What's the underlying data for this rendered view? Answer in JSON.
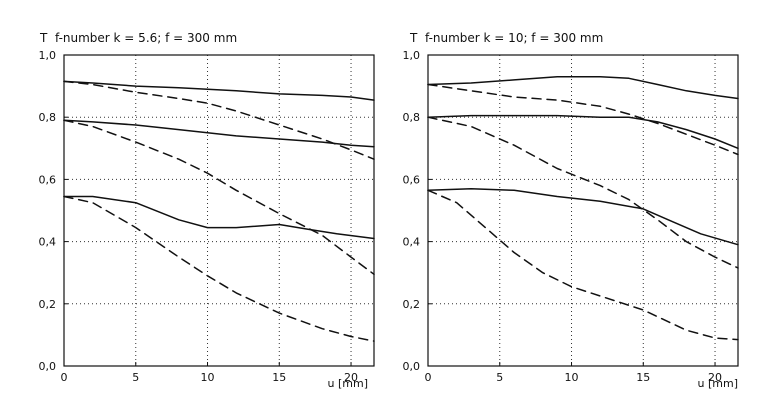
{
  "chart_data": [
    {
      "type": "line",
      "title": "f-number k = 5.6; f = 300 mm",
      "ylabel": "T",
      "xlabel": "u [mm]",
      "xlim": [
        0,
        21.6
      ],
      "ylim": [
        0,
        1.0
      ],
      "x_ticks": [
        0,
        5,
        10,
        15,
        20
      ],
      "x_tick_labels": [
        "0",
        "5",
        "10",
        "15",
        "20"
      ],
      "y_ticks": [
        0,
        0.2,
        0.4,
        0.6,
        0.8,
        1.0
      ],
      "y_tick_labels": [
        "0,0",
        "0,2",
        "0,4",
        "0,6",
        "0,8",
        "1,0"
      ],
      "grid": true,
      "series": [
        {
          "style": "solid",
          "x": [
            0,
            2,
            5,
            8,
            10,
            12,
            15,
            18,
            20,
            21.6
          ],
          "y": [
            0.915,
            0.91,
            0.9,
            0.895,
            0.89,
            0.885,
            0.875,
            0.87,
            0.865,
            0.855
          ]
        },
        {
          "style": "dashed",
          "x": [
            0,
            2,
            5,
            8,
            10,
            12,
            15,
            18,
            20,
            21.6
          ],
          "y": [
            0.915,
            0.905,
            0.88,
            0.86,
            0.845,
            0.82,
            0.775,
            0.73,
            0.695,
            0.665
          ]
        },
        {
          "style": "solid",
          "x": [
            0,
            2,
            5,
            8,
            10,
            12,
            15,
            18,
            20,
            21.6
          ],
          "y": [
            0.79,
            0.785,
            0.775,
            0.76,
            0.75,
            0.74,
            0.73,
            0.72,
            0.71,
            0.705
          ]
        },
        {
          "style": "dashed",
          "x": [
            0,
            2,
            5,
            8,
            10,
            12,
            15,
            18,
            20,
            21.6
          ],
          "y": [
            0.79,
            0.77,
            0.72,
            0.665,
            0.62,
            0.565,
            0.49,
            0.42,
            0.35,
            0.295
          ]
        },
        {
          "style": "solid",
          "x": [
            0,
            2,
            5,
            8,
            10,
            12,
            15,
            17,
            19,
            21.6
          ],
          "y": [
            0.545,
            0.545,
            0.525,
            0.47,
            0.445,
            0.445,
            0.455,
            0.44,
            0.425,
            0.41
          ]
        },
        {
          "style": "dashed",
          "x": [
            0,
            2,
            5,
            8,
            10,
            12,
            15,
            18,
            20,
            21.6
          ],
          "y": [
            0.545,
            0.525,
            0.445,
            0.35,
            0.29,
            0.235,
            0.17,
            0.12,
            0.095,
            0.08
          ]
        }
      ]
    },
    {
      "type": "line",
      "title": "f-number k = 10; f = 300 mm",
      "ylabel": "T",
      "xlabel": "u [mm]",
      "xlim": [
        0,
        21.6
      ],
      "ylim": [
        0,
        1.0
      ],
      "x_ticks": [
        0,
        5,
        10,
        15,
        20
      ],
      "x_tick_labels": [
        "0",
        "5",
        "10",
        "15",
        "20"
      ],
      "y_ticks": [
        0,
        0.2,
        0.4,
        0.6,
        0.8,
        1.0
      ],
      "y_tick_labels": [
        "0,0",
        "0,2",
        "0,4",
        "0,6",
        "0,8",
        "1,0"
      ],
      "grid": true,
      "series": [
        {
          "style": "solid",
          "x": [
            0,
            3,
            6,
            9,
            12,
            14,
            16,
            18,
            20,
            21.6
          ],
          "y": [
            0.905,
            0.91,
            0.92,
            0.93,
            0.93,
            0.925,
            0.905,
            0.885,
            0.87,
            0.86
          ]
        },
        {
          "style": "dashed",
          "x": [
            0,
            3,
            6,
            9,
            12,
            14,
            16,
            18,
            20,
            21.6
          ],
          "y": [
            0.905,
            0.885,
            0.865,
            0.855,
            0.835,
            0.81,
            0.78,
            0.745,
            0.71,
            0.68
          ]
        },
        {
          "style": "solid",
          "x": [
            0,
            3,
            6,
            9,
            12,
            14,
            16,
            18,
            20,
            21.6
          ],
          "y": [
            0.8,
            0.805,
            0.805,
            0.805,
            0.8,
            0.8,
            0.785,
            0.76,
            0.73,
            0.7
          ]
        },
        {
          "style": "dashed",
          "x": [
            0,
            3,
            6,
            9,
            12,
            14,
            16,
            18,
            20,
            21.6
          ],
          "y": [
            0.8,
            0.77,
            0.71,
            0.635,
            0.58,
            0.535,
            0.47,
            0.4,
            0.35,
            0.315
          ]
        },
        {
          "style": "solid",
          "x": [
            0,
            3,
            6,
            9,
            12,
            15,
            17,
            19,
            21.6
          ],
          "y": [
            0.565,
            0.57,
            0.565,
            0.545,
            0.53,
            0.505,
            0.465,
            0.425,
            0.39
          ]
        },
        {
          "style": "dashed",
          "x": [
            0,
            2,
            4,
            6,
            8,
            10,
            12,
            15,
            18,
            20,
            21.6
          ],
          "y": [
            0.565,
            0.525,
            0.445,
            0.365,
            0.3,
            0.255,
            0.225,
            0.18,
            0.115,
            0.09,
            0.085
          ]
        }
      ]
    }
  ]
}
